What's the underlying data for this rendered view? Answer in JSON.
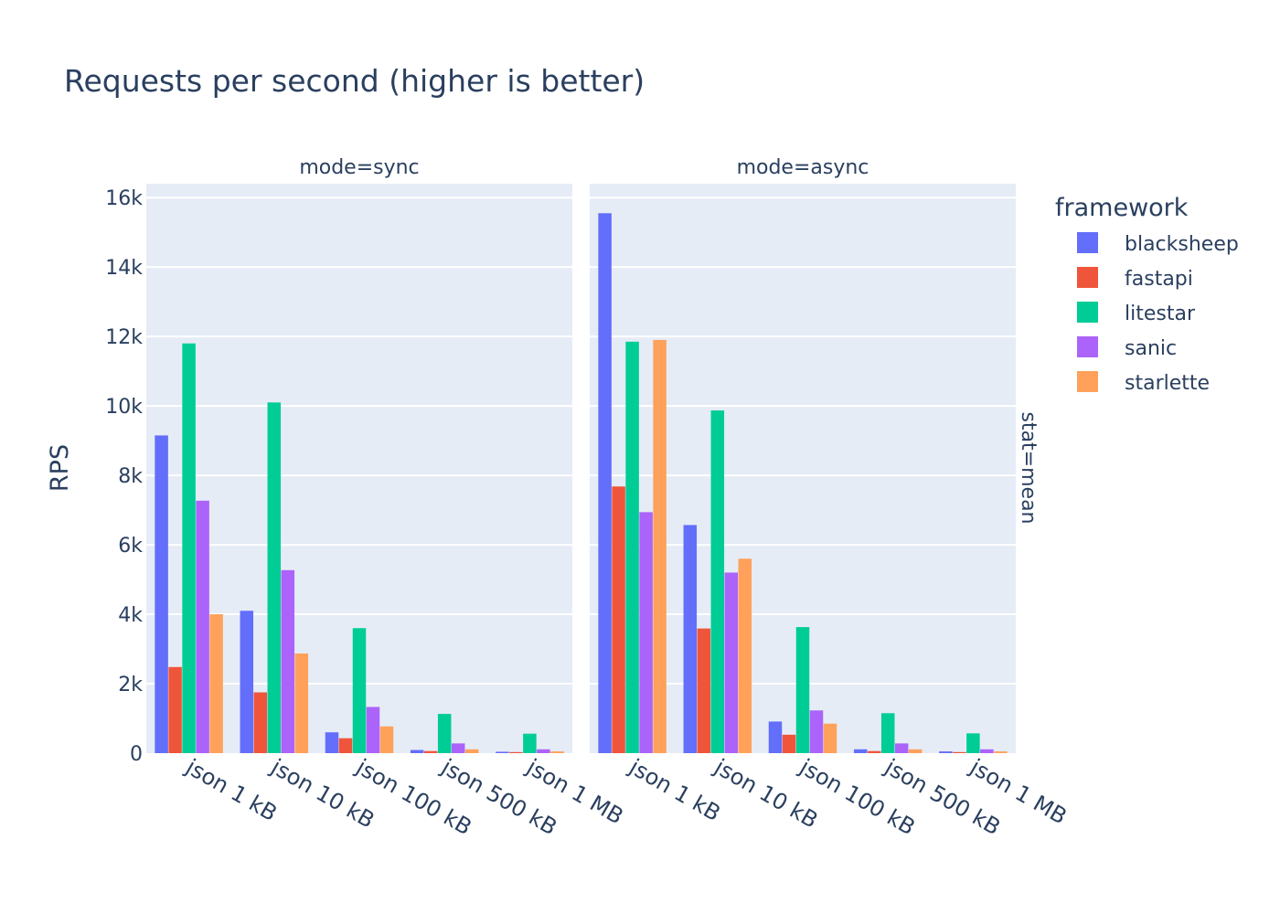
{
  "title": "Requests per second (higher is better)",
  "legend_title": "framework",
  "row_facet_label": "stat=mean",
  "ylabel": "RPS",
  "yticks": [
    {
      "value": 0,
      "label": "0"
    },
    {
      "value": 2000,
      "label": "2k"
    },
    {
      "value": 4000,
      "label": "4k"
    },
    {
      "value": 6000,
      "label": "6k"
    },
    {
      "value": 8000,
      "label": "8k"
    },
    {
      "value": 10000,
      "label": "10k"
    },
    {
      "value": 12000,
      "label": "12k"
    },
    {
      "value": 14000,
      "label": "14k"
    },
    {
      "value": 16000,
      "label": "16k"
    }
  ],
  "colors": {
    "blacksheep": "#636efa",
    "fastapi": "#EF553B",
    "litestar": "#00cc96",
    "sanic": "#ab63fa",
    "starlette": "#FFA15A",
    "plot_bg": "#E5ECF6",
    "text": "#2a3f5f",
    "grid": "#ffffff"
  },
  "chart_data": {
    "type": "bar",
    "title": "Requests per second (higher is better)",
    "ylabel": "RPS",
    "xlabel": "",
    "ylim": [
      0,
      16400
    ],
    "grid": true,
    "legend_placement": "top-right",
    "categories": [
      "json 1 kB",
      "json 10 kB",
      "json 100 kB",
      "json 500 kB",
      "json 1 MB"
    ],
    "facets": [
      {
        "label": "mode=sync",
        "series": [
          {
            "name": "blacksheep",
            "values": [
              9150,
              4100,
              600,
              90,
              40
            ]
          },
          {
            "name": "fastapi",
            "values": [
              2480,
              1750,
              430,
              60,
              30
            ]
          },
          {
            "name": "litestar",
            "values": [
              11800,
              10100,
              3600,
              1130,
              560
            ]
          },
          {
            "name": "sanic",
            "values": [
              7270,
              5270,
              1330,
              280,
              110
            ]
          },
          {
            "name": "starlette",
            "values": [
              4000,
              2870,
              770,
              110,
              50
            ]
          }
        ]
      },
      {
        "label": "mode=async",
        "series": [
          {
            "name": "blacksheep",
            "values": [
              15550,
              6570,
              910,
              110,
              50
            ]
          },
          {
            "name": "fastapi",
            "values": [
              7680,
              3590,
              530,
              60,
              30
            ]
          },
          {
            "name": "litestar",
            "values": [
              11850,
              9870,
              3630,
              1150,
              570
            ]
          },
          {
            "name": "sanic",
            "values": [
              6940,
              5200,
              1230,
              280,
              110
            ]
          },
          {
            "name": "starlette",
            "values": [
              11900,
              5600,
              850,
              110,
              50
            ]
          }
        ]
      }
    ]
  }
}
